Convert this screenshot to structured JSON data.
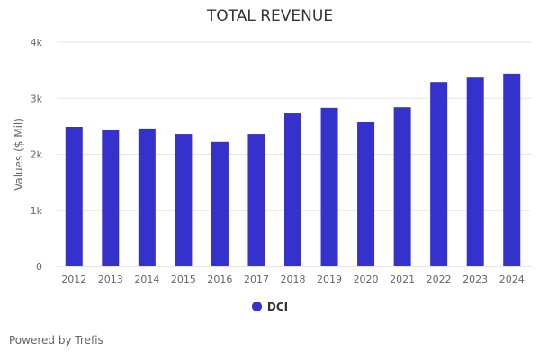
{
  "chart_data": {
    "type": "bar",
    "title": "TOTAL REVENUE",
    "ylabel": "Values ($ Mil)",
    "xlabel": "",
    "categories": [
      "2012",
      "2013",
      "2014",
      "2015",
      "2016",
      "2017",
      "2018",
      "2019",
      "2020",
      "2021",
      "2022",
      "2023",
      "2024"
    ],
    "series": [
      {
        "name": "DCI",
        "values": [
          2490,
          2430,
          2460,
          2360,
          2220,
          2360,
          2730,
          2830,
          2570,
          2840,
          3290,
          3370,
          3440
        ],
        "color": "#3431cc"
      }
    ],
    "ylim": [
      0,
      4000
    ],
    "yticks": [
      0,
      1000,
      2000,
      3000,
      4000
    ],
    "ytick_labels": [
      "0",
      "1k",
      "2k",
      "3k",
      "4k"
    ],
    "grid": true,
    "legend_position": "bottom"
  },
  "footer": {
    "credit": "Powered by Trefis"
  }
}
